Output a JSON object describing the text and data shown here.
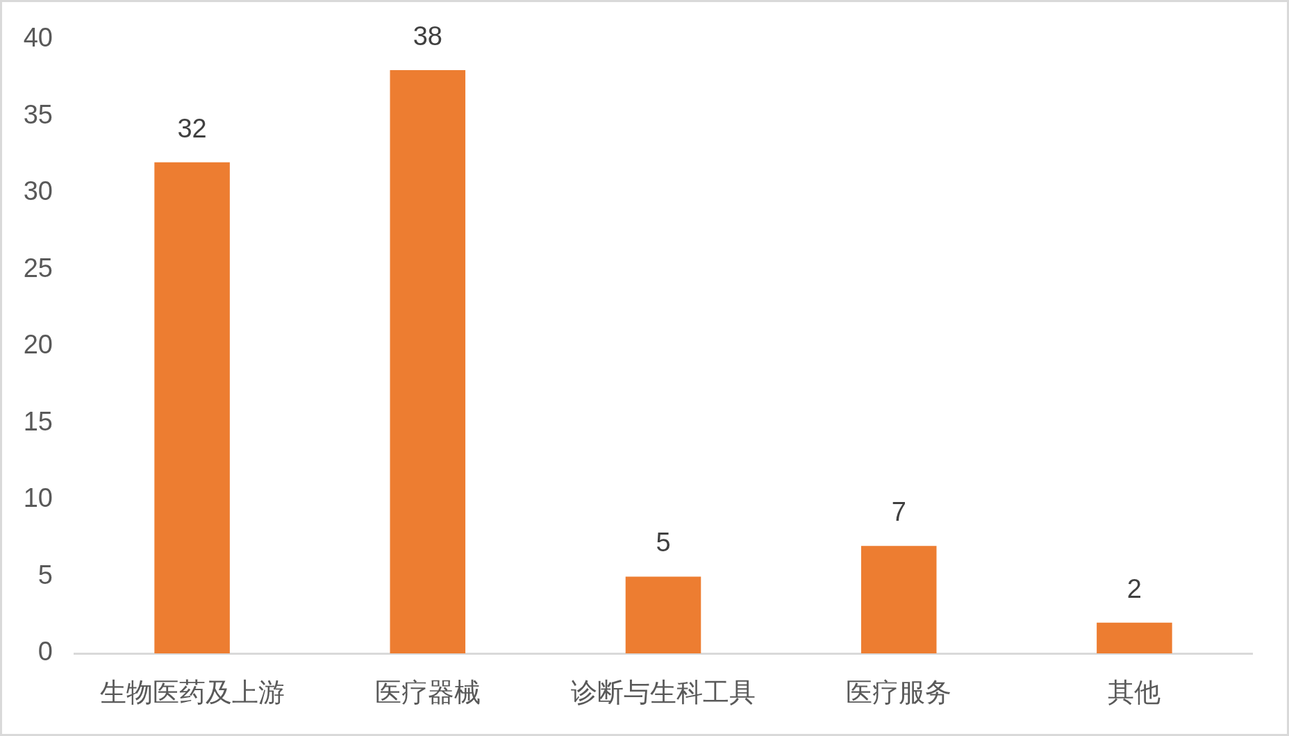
{
  "chart_data": {
    "type": "bar",
    "categories": [
      "生物医药及上游",
      "医疗器械",
      "诊断与生科工具",
      "医疗服务",
      "其他"
    ],
    "values": [
      32,
      38,
      5,
      7,
      2
    ],
    "color": "#ed7d31",
    "ylim": [
      0,
      40
    ],
    "yticks": [
      0,
      5,
      10,
      15,
      20,
      25,
      30,
      35,
      40
    ],
    "data_labels": true
  }
}
